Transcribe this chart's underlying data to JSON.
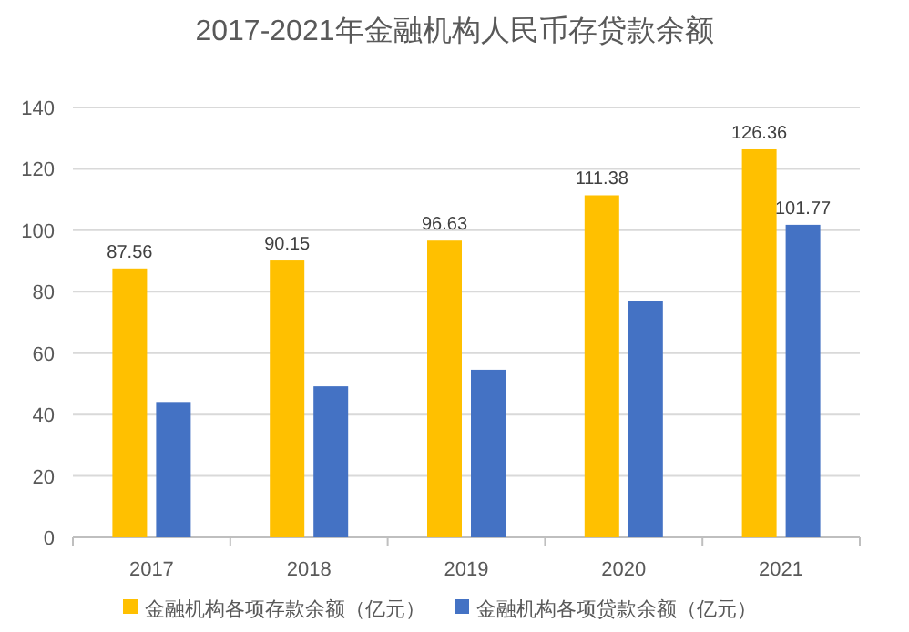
{
  "chart_data": {
    "type": "bar",
    "title": "2017-2021年金融机构人民币存贷款余额",
    "categories": [
      "2017",
      "2018",
      "2019",
      "2020",
      "2021"
    ],
    "series": [
      {
        "name": "金融机构各项存款余额（亿元）",
        "color": "#ffc000",
        "values": [
          87.56,
          90.15,
          96.63,
          111.38,
          126.36
        ],
        "value_labels": [
          "87.56",
          "90.15",
          "96.63",
          "111.38",
          "126.36"
        ]
      },
      {
        "name": "金融机构各项贷款余额（亿元）",
        "color": "#4472c4",
        "values": [
          44.1,
          49.2,
          54.6,
          77.1,
          101.77
        ],
        "value_labels": [
          null,
          null,
          null,
          null,
          "101.77"
        ]
      }
    ],
    "ylim": [
      0,
      140
    ],
    "yticks": [
      0,
      20,
      40,
      60,
      80,
      100,
      120,
      140
    ],
    "grid": "y",
    "legend": "bottom"
  }
}
